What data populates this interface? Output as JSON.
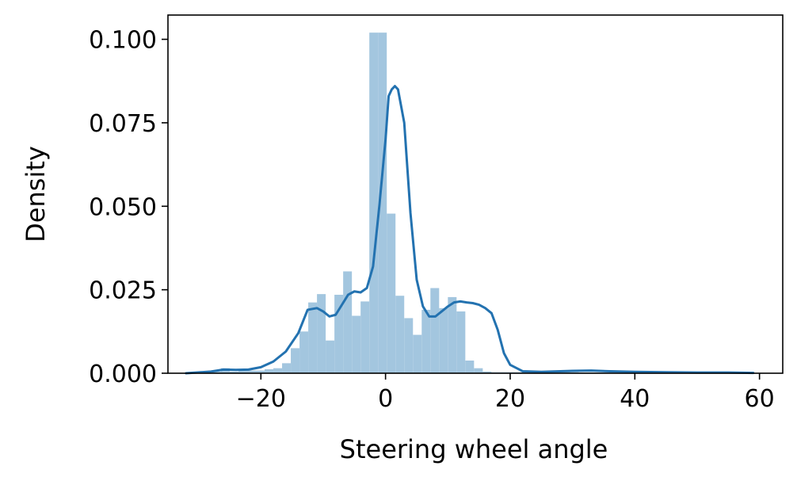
{
  "chart_data": {
    "type": "histogram",
    "xlabel": "Steering wheel angle",
    "ylabel": "Density",
    "xlim": [
      -35,
      64
    ],
    "ylim": [
      0,
      0.107
    ],
    "x_ticks": [
      -20,
      0,
      20,
      40,
      60
    ],
    "x_tick_labels": [
      "−20",
      "0",
      "20",
      "40",
      "60"
    ],
    "y_ticks": [
      0,
      0.025,
      0.05,
      0.075,
      0.1
    ],
    "y_tick_labels": [
      "0.000",
      "0.025",
      "0.050",
      "0.075",
      "0.100"
    ],
    "grid": false,
    "legend": "none",
    "colors": {
      "bars": "#a3c6df",
      "kde": "#2372b0"
    },
    "bin_edges": [
      -32,
      -30.6,
      -29.2,
      -27.8,
      -26.4,
      -25,
      -23.6,
      -22.2,
      -20.8,
      -19.4,
      -18,
      -16.6,
      -15.2,
      -13.8,
      -12.4,
      -11,
      -9.6,
      -8.2,
      -6.8,
      -5.4,
      -4,
      -2.6,
      -1.2,
      0.2,
      1.6,
      3,
      4.4,
      5.8,
      7.2,
      8.6,
      10,
      11.4,
      12.8,
      14.2,
      15.6,
      17,
      18.4,
      19.8,
      21.2,
      22.6,
      24,
      25.4,
      26.8,
      28.2,
      29.6,
      31,
      32.4,
      33.8,
      35.2,
      36.6,
      38,
      39.4,
      40.8,
      42.2,
      43.6,
      45,
      46.4,
      47.8,
      49.2,
      50.6,
      52,
      53.4,
      54.8,
      56.2,
      57.6,
      59
    ],
    "bar_heights": [
      0,
      0,
      0,
      0.0005,
      0.0015,
      0.0005,
      0.0008,
      0.0008,
      0.0008,
      0.0012,
      0.0015,
      0.003,
      0.0075,
      0.0125,
      0.0212,
      0.0237,
      0.0098,
      0.0235,
      0.0305,
      0.0172,
      0.0215,
      0.102,
      0.102,
      0.0478,
      0.0232,
      0.0165,
      0.0115,
      0.019,
      0.0255,
      0.0195,
      0.0228,
      0.0185,
      0.0038,
      0.0015,
      0.0005,
      0.0003,
      0.0003,
      0.0003,
      0.0003,
      0.0003,
      0.0004,
      0.0004,
      0.0005,
      0.0004,
      0.0003,
      0.0002,
      0.0002,
      0.0002,
      0.0002,
      0.0002,
      0.0002,
      0.0002,
      0.0002,
      0.0002,
      0.0002,
      0.0002,
      0.0002,
      0.0002,
      0.0002,
      0.0002,
      0.0002,
      0.0002,
      0.0002,
      0.0002,
      0.0001
    ],
    "kde_x": [
      -32,
      -28,
      -26,
      -24,
      -22,
      -20,
      -18,
      -16,
      -14,
      -12.5,
      -11,
      -10,
      -9,
      -8,
      -7,
      -6,
      -5,
      -4,
      -3,
      -2,
      -1,
      0,
      0.5,
      1,
      1.5,
      2,
      3,
      4,
      5,
      6,
      7,
      8,
      9,
      10,
      11,
      12,
      13,
      14,
      15,
      16,
      17,
      18,
      19,
      20,
      22,
      25,
      30,
      33,
      36,
      40,
      45,
      50,
      55,
      59
    ],
    "kde_y": [
      0,
      0.0005,
      0.0011,
      0.001,
      0.0011,
      0.0018,
      0.0035,
      0.0065,
      0.012,
      0.019,
      0.0195,
      0.0185,
      0.017,
      0.0175,
      0.0205,
      0.0235,
      0.0245,
      0.0242,
      0.0255,
      0.032,
      0.05,
      0.07,
      0.083,
      0.085,
      0.086,
      0.085,
      0.075,
      0.048,
      0.028,
      0.02,
      0.017,
      0.017,
      0.0185,
      0.02,
      0.0212,
      0.0215,
      0.0212,
      0.021,
      0.0205,
      0.0195,
      0.018,
      0.013,
      0.006,
      0.0025,
      0.0006,
      0.0004,
      0.0007,
      0.0008,
      0.0006,
      0.0004,
      0.0003,
      0.0002,
      0.0002,
      0.0001
    ]
  }
}
